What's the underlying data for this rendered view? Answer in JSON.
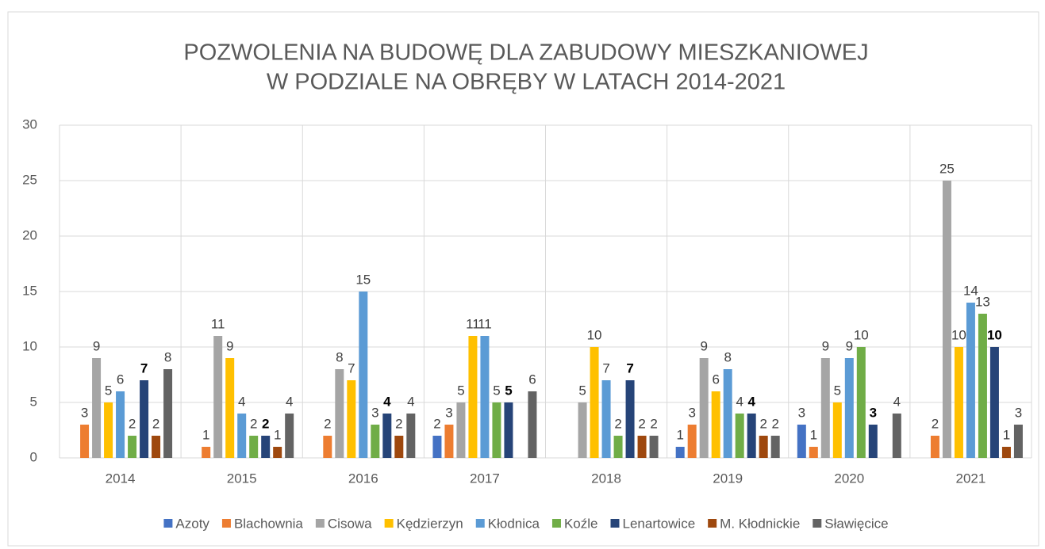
{
  "chart_data": {
    "type": "bar",
    "title": [
      "POZWOLENIA NA BUDOWĘ DLA ZABUDOWY MIESZKANIOWEJ",
      "W PODZIALE NA OBRĘBY W LATACH 2014-2021"
    ],
    "categories": [
      "2014",
      "2015",
      "2016",
      "2017",
      "2018",
      "2019",
      "2020",
      "2021"
    ],
    "series": [
      {
        "name": "Azoty",
        "color": "#4472c4",
        "values": [
          null,
          null,
          null,
          2,
          null,
          1,
          3,
          null
        ]
      },
      {
        "name": "Blachownia",
        "color": "#ed7d31",
        "values": [
          3,
          1,
          2,
          3,
          null,
          3,
          1,
          2
        ]
      },
      {
        "name": "Cisowa",
        "color": "#a5a5a5",
        "values": [
          9,
          11,
          8,
          5,
          5,
          9,
          9,
          25
        ]
      },
      {
        "name": "Kędzierzyn",
        "color": "#ffc000",
        "values": [
          5,
          9,
          7,
          11,
          10,
          6,
          5,
          10
        ]
      },
      {
        "name": "Kłodnica",
        "color": "#5b9bd5",
        "values": [
          6,
          4,
          15,
          11,
          7,
          8,
          9,
          14
        ]
      },
      {
        "name": "Koźle",
        "color": "#70ad47",
        "values": [
          2,
          2,
          3,
          5,
          2,
          4,
          10,
          13
        ]
      },
      {
        "name": "Lenartowice",
        "color": "#264478",
        "values": [
          7,
          2,
          4,
          5,
          7,
          4,
          3,
          10
        ]
      },
      {
        "name": "M. Kłodnickie",
        "color": "#9e480e",
        "values": [
          2,
          1,
          2,
          null,
          2,
          2,
          null,
          1
        ]
      },
      {
        "name": "Sławięcice",
        "color": "#636363",
        "values": [
          8,
          4,
          4,
          6,
          2,
          2,
          4,
          3
        ]
      }
    ],
    "ylim": [
      0,
      30
    ],
    "yticks": [
      0,
      5,
      10,
      15,
      20,
      25,
      30
    ],
    "grid": true,
    "legend": "bottom"
  }
}
